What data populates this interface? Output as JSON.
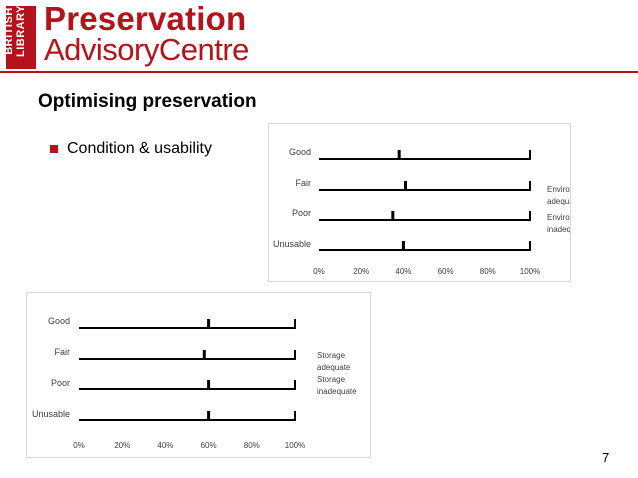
{
  "logo": {
    "badge_text": "BRITISH\nLIBRARY",
    "line1": "Preservation",
    "line2": "AdvisoryCentre"
  },
  "slide": {
    "title": "Optimising preservation",
    "bullet": "Condition & usability",
    "page_number": "7"
  },
  "colors": {
    "brand": "#b5121b",
    "line": "#000000",
    "text": "#404040"
  },
  "chart_data": [
    {
      "type": "bar",
      "orientation": "horizontal",
      "categories": [
        "Good",
        "Fair",
        "Poor",
        "Unusable"
      ],
      "xlim": [
        0,
        100
      ],
      "xticks": [
        "0%",
        "20%",
        "40%",
        "60%",
        "80%",
        "100%"
      ],
      "series": [
        {
          "name": "Environment adequate",
          "values": [
            38,
            41,
            35,
            40
          ]
        },
        {
          "name": "Environment inadequate",
          "values": [
            100,
            100,
            100,
            100
          ]
        }
      ],
      "legend_position": "right",
      "grid": false
    },
    {
      "type": "bar",
      "orientation": "horizontal",
      "categories": [
        "Good",
        "Fair",
        "Poor",
        "Unusable"
      ],
      "xlim": [
        0,
        100
      ],
      "xticks": [
        "0%",
        "20%",
        "40%",
        "60%",
        "80%",
        "100%"
      ],
      "series": [
        {
          "name": "Storage adequate",
          "values": [
            60,
            58,
            60,
            60
          ]
        },
        {
          "name": "Storage inadequate",
          "values": [
            100,
            100,
            100,
            100
          ]
        }
      ],
      "legend_position": "right",
      "grid": false
    }
  ]
}
